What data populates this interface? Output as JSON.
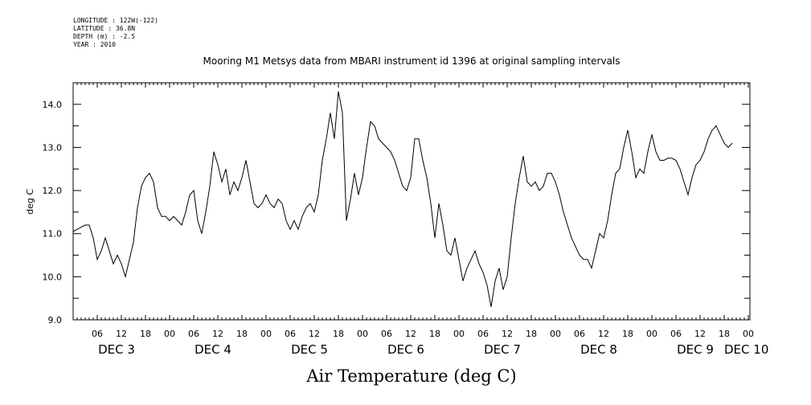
{
  "header": {
    "longitude": "LONGITUDE : 122W(-122)",
    "latitude": "LATITUDE : 36.8N",
    "depth": "DEPTH (m) : -2.5",
    "year": "YEAR : 2010"
  },
  "chart_data": {
    "type": "line",
    "title": "Mooring M1 Metsys data from MBARI instrument id 1396 at original sampling intervals",
    "xlabel": "Air Temperature (deg C)",
    "ylabel": "deg C",
    "ylim": [
      9.0,
      14.5
    ],
    "yticks": [
      "9.0",
      "10.0",
      "11.0",
      "12.0",
      "13.0",
      "14.0"
    ],
    "xlim_hours": [
      0,
      168
    ],
    "hour_tick_labels": [
      "06",
      "12",
      "18",
      "00",
      "06",
      "12",
      "18",
      "00",
      "06",
      "12",
      "18",
      "00",
      "06",
      "12",
      "18",
      "00",
      "06",
      "12",
      "18",
      "00",
      "06",
      "12",
      "18",
      "00",
      "06",
      "12",
      "18",
      "00"
    ],
    "day_labels": [
      "DEC 3",
      "DEC 4",
      "DEC 5",
      "DEC 6",
      "DEC 7",
      "DEC 8",
      "DEC 9",
      "DEC 10"
    ],
    "grid": false,
    "series": [
      {
        "points": [
          [
            0,
            11.05
          ],
          [
            1,
            11.1
          ],
          [
            2,
            11.15
          ],
          [
            3,
            11.2
          ],
          [
            4,
            11.2
          ],
          [
            5,
            10.9
          ],
          [
            6,
            10.4
          ],
          [
            7,
            10.6
          ],
          [
            8,
            10.9
          ],
          [
            9,
            10.6
          ],
          [
            10,
            10.3
          ],
          [
            11,
            10.5
          ],
          [
            12,
            10.3
          ],
          [
            13,
            10.0
          ],
          [
            14,
            10.4
          ],
          [
            15,
            10.8
          ],
          [
            16,
            11.6
          ],
          [
            17,
            12.1
          ],
          [
            18,
            12.3
          ],
          [
            19,
            12.4
          ],
          [
            20,
            12.2
          ],
          [
            21,
            11.6
          ],
          [
            22,
            11.4
          ],
          [
            23,
            11.4
          ],
          [
            24,
            11.3
          ],
          [
            25,
            11.4
          ],
          [
            26,
            11.3
          ],
          [
            27,
            11.2
          ],
          [
            28,
            11.5
          ],
          [
            29,
            11.9
          ],
          [
            30,
            12.0
          ],
          [
            31,
            11.3
          ],
          [
            32,
            11.0
          ],
          [
            33,
            11.5
          ],
          [
            34,
            12.1
          ],
          [
            35,
            12.9
          ],
          [
            36,
            12.6
          ],
          [
            37,
            12.2
          ],
          [
            38,
            12.5
          ],
          [
            39,
            11.9
          ],
          [
            40,
            12.2
          ],
          [
            41,
            12.0
          ],
          [
            42,
            12.3
          ],
          [
            43,
            12.7
          ],
          [
            44,
            12.2
          ],
          [
            45,
            11.7
          ],
          [
            46,
            11.6
          ],
          [
            47,
            11.7
          ],
          [
            48,
            11.9
          ],
          [
            49,
            11.7
          ],
          [
            50,
            11.6
          ],
          [
            51,
            11.8
          ],
          [
            52,
            11.7
          ],
          [
            53,
            11.3
          ],
          [
            54,
            11.1
          ],
          [
            55,
            11.3
          ],
          [
            56,
            11.1
          ],
          [
            57,
            11.4
          ],
          [
            58,
            11.6
          ],
          [
            59,
            11.7
          ],
          [
            60,
            11.5
          ],
          [
            61,
            11.9
          ],
          [
            62,
            12.7
          ],
          [
            63,
            13.2
          ],
          [
            64,
            13.8
          ],
          [
            65,
            13.2
          ],
          [
            66,
            14.3
          ],
          [
            67,
            13.8
          ],
          [
            68,
            11.3
          ],
          [
            69,
            11.8
          ],
          [
            70,
            12.4
          ],
          [
            71,
            11.9
          ],
          [
            72,
            12.3
          ],
          [
            73,
            13.0
          ],
          [
            74,
            13.6
          ],
          [
            75,
            13.5
          ],
          [
            76,
            13.2
          ],
          [
            77,
            13.1
          ],
          [
            78,
            13.0
          ],
          [
            79,
            12.9
          ],
          [
            80,
            12.7
          ],
          [
            81,
            12.4
          ],
          [
            82,
            12.1
          ],
          [
            83,
            12.0
          ],
          [
            84,
            12.3
          ],
          [
            85,
            13.2
          ],
          [
            86,
            13.2
          ],
          [
            87,
            12.7
          ],
          [
            88,
            12.3
          ],
          [
            89,
            11.7
          ],
          [
            90,
            10.9
          ],
          [
            91,
            11.7
          ],
          [
            92,
            11.2
          ],
          [
            93,
            10.6
          ],
          [
            94,
            10.5
          ],
          [
            95,
            10.9
          ],
          [
            96,
            10.4
          ],
          [
            97,
            9.9
          ],
          [
            98,
            10.2
          ],
          [
            99,
            10.4
          ],
          [
            100,
            10.6
          ],
          [
            101,
            10.3
          ],
          [
            102,
            10.1
          ],
          [
            103,
            9.8
          ],
          [
            104,
            9.3
          ],
          [
            105,
            9.9
          ],
          [
            106,
            10.2
          ],
          [
            107,
            9.7
          ],
          [
            108,
            10.0
          ],
          [
            109,
            10.9
          ],
          [
            110,
            11.7
          ],
          [
            111,
            12.3
          ],
          [
            112,
            12.8
          ],
          [
            113,
            12.2
          ],
          [
            114,
            12.1
          ],
          [
            115,
            12.2
          ],
          [
            116,
            12.0
          ],
          [
            117,
            12.1
          ],
          [
            118,
            12.4
          ],
          [
            119,
            12.4
          ],
          [
            120,
            12.2
          ],
          [
            121,
            11.9
          ],
          [
            122,
            11.5
          ],
          [
            123,
            11.2
          ],
          [
            124,
            10.9
          ],
          [
            125,
            10.7
          ],
          [
            126,
            10.5
          ],
          [
            127,
            10.4
          ],
          [
            128,
            10.4
          ],
          [
            129,
            10.2
          ],
          [
            130,
            10.6
          ],
          [
            131,
            11.0
          ],
          [
            132,
            10.9
          ],
          [
            133,
            11.3
          ],
          [
            134,
            11.9
          ],
          [
            135,
            12.4
          ],
          [
            136,
            12.5
          ],
          [
            137,
            13.0
          ],
          [
            138,
            13.4
          ],
          [
            139,
            12.9
          ],
          [
            140,
            12.3
          ],
          [
            141,
            12.5
          ],
          [
            142,
            12.4
          ],
          [
            143,
            12.9
          ],
          [
            144,
            13.3
          ],
          [
            145,
            12.9
          ],
          [
            146,
            12.7
          ],
          [
            147,
            12.7
          ],
          [
            148,
            12.75
          ],
          [
            149,
            12.75
          ],
          [
            150,
            12.7
          ],
          [
            151,
            12.5
          ],
          [
            152,
            12.2
          ],
          [
            153,
            11.9
          ],
          [
            154,
            12.3
          ],
          [
            155,
            12.6
          ],
          [
            156,
            12.7
          ],
          [
            157,
            12.9
          ],
          [
            158,
            13.2
          ],
          [
            159,
            13.4
          ],
          [
            160,
            13.5
          ],
          [
            161,
            13.3
          ],
          [
            162,
            13.1
          ],
          [
            163,
            13.0
          ],
          [
            164,
            13.1
          ]
        ]
      }
    ]
  }
}
